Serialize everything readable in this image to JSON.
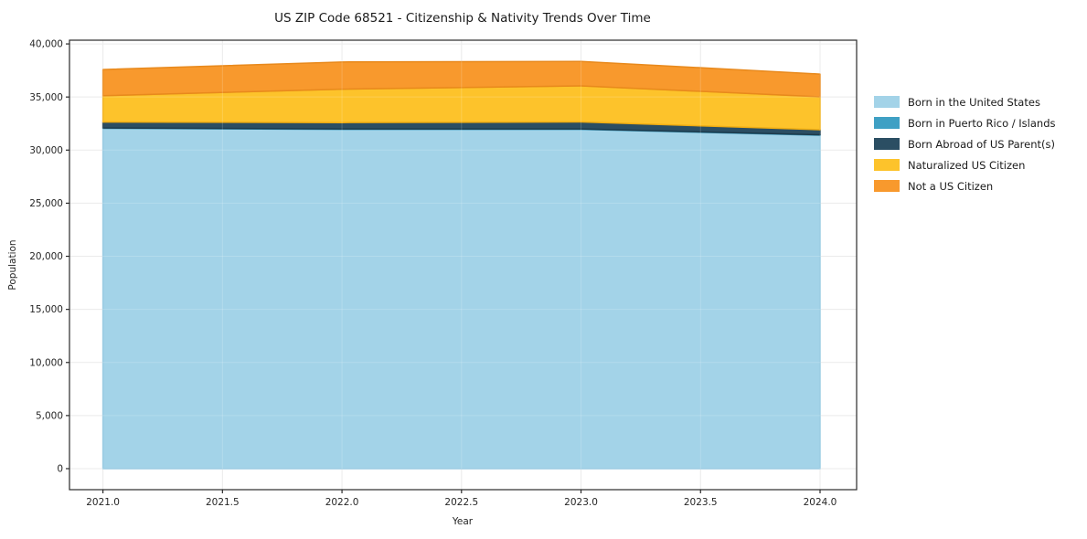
{
  "chart_data": {
    "type": "area",
    "stacked": true,
    "title": "US ZIP Code 68521 - Citizenship & Nativity Trends Over Time",
    "xlabel": "Year",
    "ylabel": "Population",
    "x": [
      2021,
      2022,
      2023,
      2024
    ],
    "series": [
      {
        "name": "Born in the United States",
        "values": [
          32050,
          31950,
          31950,
          31400
        ],
        "color": "#A3D3E8",
        "edge": "#8FC6DF"
      },
      {
        "name": "Born in Puerto Rico / Islands",
        "values": [
          40,
          40,
          40,
          40
        ],
        "color": "#3FA0C4",
        "edge": "#3490B3"
      },
      {
        "name": "Born Abroad of US Parent(s)",
        "values": [
          550,
          600,
          660,
          480
        ],
        "color": "#2B4E63",
        "edge": "#1D3B4C"
      },
      {
        "name": "Naturalized US Citizen",
        "values": [
          2480,
          3150,
          3400,
          3100
        ],
        "color": "#FDC32B",
        "edge": "#F0AD12"
      },
      {
        "name": "Not a US Citizen",
        "values": [
          2470,
          2560,
          2300,
          2140
        ],
        "color": "#F8992D",
        "edge": "#E8891C"
      }
    ],
    "totals": [
      37590,
      38300,
      38350,
      37160
    ],
    "xlim": [
      2020.86,
      2024.153
    ],
    "ylim": [
      -1980,
      40350
    ],
    "x_ticks": [
      {
        "v": 2021.0,
        "label": "2021.0"
      },
      {
        "v": 2021.5,
        "label": "2021.5"
      },
      {
        "v": 2022.0,
        "label": "2022.0"
      },
      {
        "v": 2022.5,
        "label": "2022.5"
      },
      {
        "v": 2023.0,
        "label": "2023.0"
      },
      {
        "v": 2023.5,
        "label": "2023.5"
      },
      {
        "v": 2024.0,
        "label": "2024.0"
      }
    ],
    "y_ticks": [
      {
        "v": 0,
        "label": "0"
      },
      {
        "v": 5000,
        "label": "5,000"
      },
      {
        "v": 10000,
        "label": "10,000"
      },
      {
        "v": 15000,
        "label": "15,000"
      },
      {
        "v": 20000,
        "label": "20,000"
      },
      {
        "v": 25000,
        "label": "25,000"
      },
      {
        "v": 30000,
        "label": "30,000"
      },
      {
        "v": 35000,
        "label": "35,000"
      },
      {
        "v": 40000,
        "label": "40,000"
      }
    ],
    "grid": true,
    "grid_color": "#E7E7E7",
    "spine_color": "#2a2a2a",
    "legend_position": "right"
  }
}
